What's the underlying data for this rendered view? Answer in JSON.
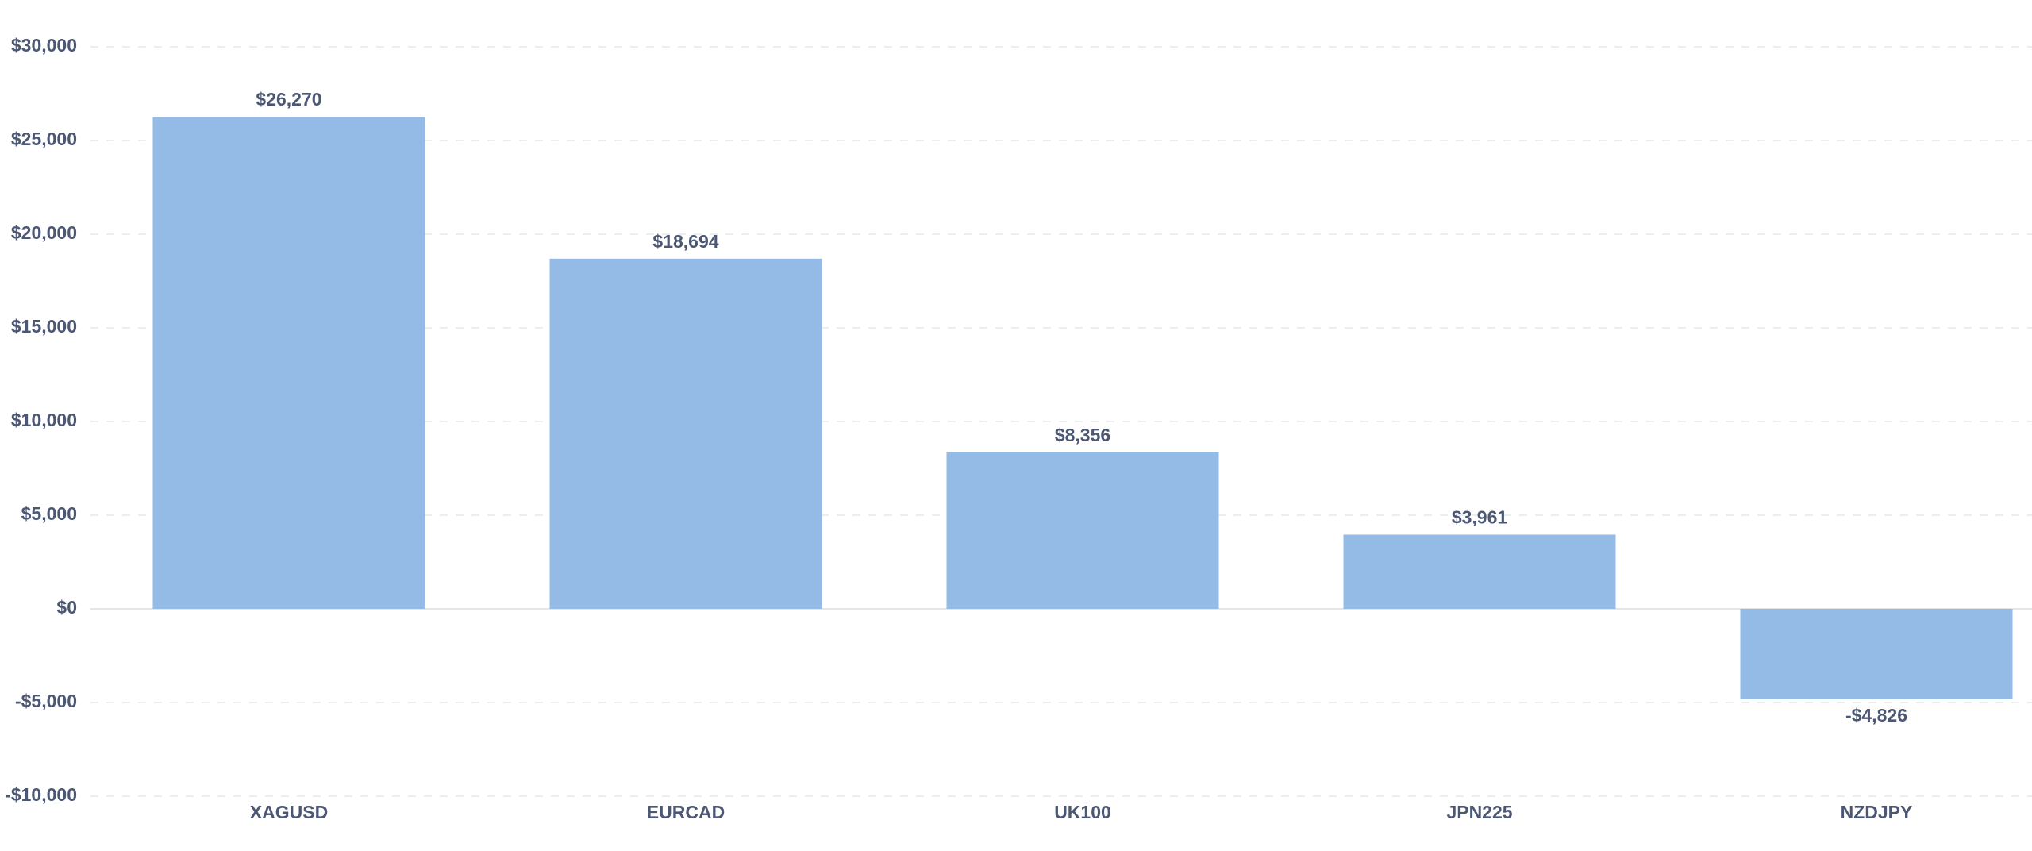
{
  "chart_data": {
    "type": "bar",
    "categories": [
      "XAGUSD",
      "EURCAD",
      "UK100",
      "JPN225",
      "NZDJPY"
    ],
    "values": [
      26270,
      18694,
      8356,
      3961,
      -4826
    ],
    "value_labels": [
      "$26,270",
      "$18,694",
      "$8,356",
      "$3,961",
      "-$4,826"
    ],
    "color": "#93bbe6",
    "ylim": [
      -10000,
      30000
    ],
    "yticks": [
      {
        "value": -10000,
        "label": "-$10,000"
      },
      {
        "value": -5000,
        "label": "-$5,000"
      },
      {
        "value": 0,
        "label": "$0"
      },
      {
        "value": 5000,
        "label": "$5,000"
      },
      {
        "value": 10000,
        "label": "$10,000"
      },
      {
        "value": 15000,
        "label": "$15,000"
      },
      {
        "value": 20000,
        "label": "$20,000"
      },
      {
        "value": 25000,
        "label": "$25,000"
      },
      {
        "value": 30000,
        "label": "$30,000"
      }
    ],
    "grid": true
  }
}
